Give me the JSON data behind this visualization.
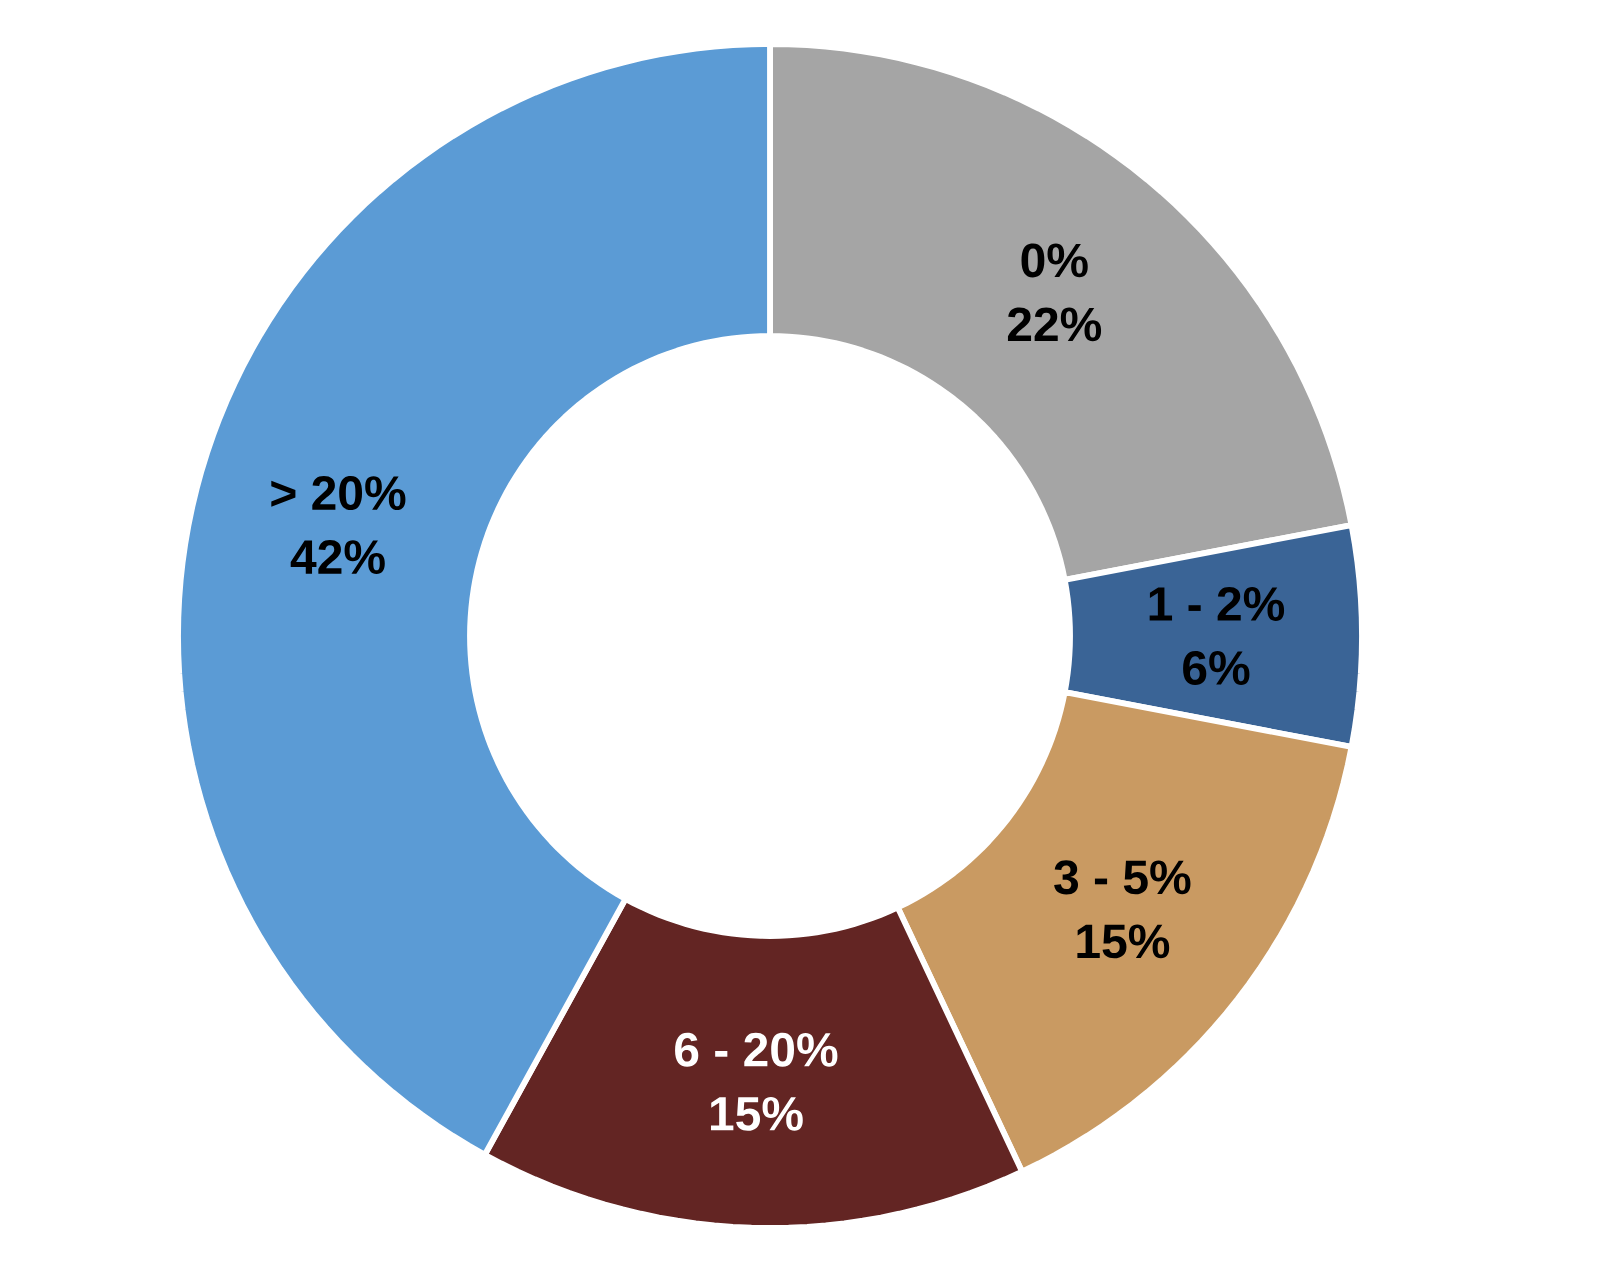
{
  "chart_data": {
    "type": "donut",
    "categories": [
      "0%",
      "1 - 2%",
      "3 - 5%",
      "6 - 20%",
      "> 20%"
    ],
    "values": [
      22,
      6,
      15,
      15,
      42
    ],
    "colors": [
      "#a5a5a5",
      "#3a6496",
      "#c99a62",
      "#632523",
      "#5b9bd5"
    ],
    "value_labels": [
      "22%",
      "6%",
      "15%",
      "15%",
      "42%"
    ]
  }
}
